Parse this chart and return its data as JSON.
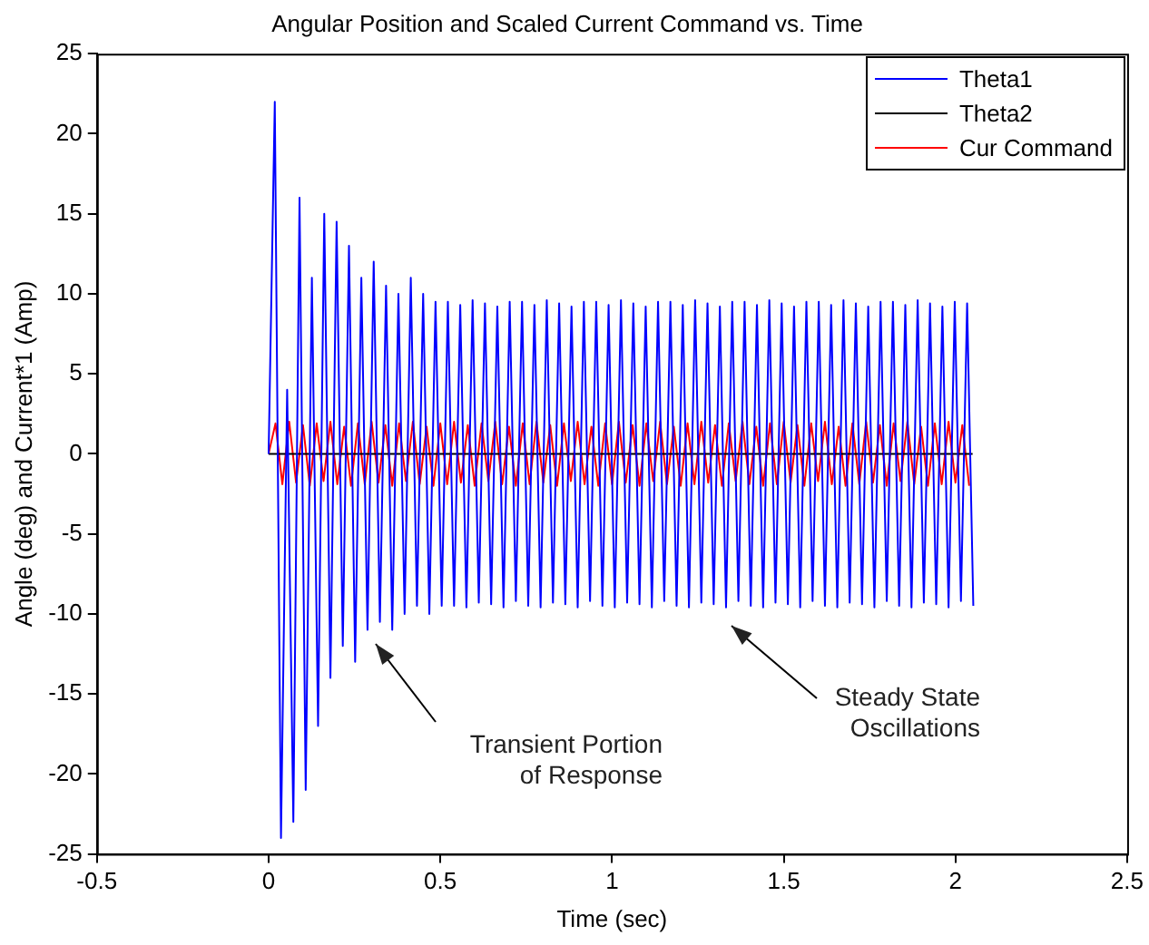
{
  "chart_data": {
    "type": "line",
    "title": "Angular Position and Scaled Current Command vs. Time",
    "xlabel": "Time (sec)",
    "ylabel": "Angle (deg) and Current*1 (Amp)",
    "xlim": [
      -0.5,
      2.5
    ],
    "xticks": [
      -0.5,
      0,
      0.5,
      1,
      1.5,
      2,
      2.5
    ],
    "ylim": [
      -25,
      25
    ],
    "yticks": [
      -25,
      -20,
      -15,
      -10,
      -5,
      0,
      5,
      10,
      15,
      20,
      25
    ],
    "grid": false,
    "legend": "top right",
    "marker": "none",
    "line_style": "solid",
    "annotations": [
      "Transient Portion\nof Response",
      "Steady State\nOscillations"
    ],
    "series": [
      {
        "name": "Theta1",
        "color": "#0000ff",
        "x": [
          0,
          0.018,
          0.036,
          0.054,
          0.072,
          0.09,
          0.108,
          0.126,
          0.144,
          0.162,
          0.18,
          0.198,
          0.216,
          0.234,
          0.252,
          0.27,
          0.288,
          0.306,
          0.324,
          0.342,
          0.36,
          0.378,
          0.396,
          0.414,
          0.432,
          0.45,
          0.468,
          0.486,
          0.504,
          0.522,
          0.54,
          0.558,
          0.576,
          0.594,
          0.612,
          0.63,
          0.648,
          0.666,
          0.684,
          0.702,
          0.72,
          0.738,
          0.756,
          0.774,
          0.792,
          0.81,
          0.828,
          0.846,
          0.864,
          0.882,
          0.9,
          0.918,
          0.936,
          0.954,
          0.972,
          0.99,
          1.008,
          1.026,
          1.044,
          1.062,
          1.08,
          1.098,
          1.116,
          1.134,
          1.152,
          1.17,
          1.188,
          1.206,
          1.224,
          1.242,
          1.26,
          1.278,
          1.296,
          1.314,
          1.332,
          1.35,
          1.368,
          1.386,
          1.404,
          1.422,
          1.44,
          1.458,
          1.476,
          1.494,
          1.512,
          1.53,
          1.548,
          1.566,
          1.584,
          1.602,
          1.62,
          1.638,
          1.656,
          1.674,
          1.692,
          1.71,
          1.728,
          1.746,
          1.764,
          1.782,
          1.8,
          1.818,
          1.836,
          1.854,
          1.872,
          1.89,
          1.908,
          1.926,
          1.944,
          1.962,
          1.98,
          1.998,
          2.016,
          2.034,
          2.052
        ],
        "values": [
          0,
          22,
          -24,
          4,
          -23,
          16,
          -21,
          11,
          -17,
          15,
          -14,
          14.5,
          -12,
          13,
          -13,
          11,
          -11,
          12,
          -10.5,
          10.5,
          -11,
          10,
          -10,
          11,
          -9.5,
          10,
          -10,
          9.5,
          -9.5,
          9.5,
          -9.5,
          9.3,
          -9.6,
          9.6,
          -9.3,
          9.4,
          -9.4,
          9.2,
          -9.6,
          9.5,
          -9.2,
          9.5,
          -9.5,
          9.3,
          -9.6,
          9.6,
          -9.3,
          9.4,
          -9.4,
          9.2,
          -9.6,
          9.5,
          -9.2,
          9.5,
          -9.5,
          9.3,
          -9.6,
          9.6,
          -9.3,
          9.4,
          -9.4,
          9.2,
          -9.6,
          9.5,
          -9.2,
          9.5,
          -9.5,
          9.3,
          -9.6,
          9.6,
          -9.3,
          9.4,
          -9.4,
          9.2,
          -9.6,
          9.5,
          -9.2,
          9.5,
          -9.5,
          9.3,
          -9.6,
          9.6,
          -9.3,
          9.4,
          -9.4,
          9.2,
          -9.6,
          9.5,
          -9.2,
          9.5,
          -9.5,
          9.3,
          -9.6,
          9.6,
          -9.3,
          9.4,
          -9.4,
          9.2,
          -9.6,
          9.5,
          -9.2,
          9.5,
          -9.5,
          9.3,
          -9.6,
          9.6,
          -9.3,
          9.4,
          -9.4,
          9.2,
          -9.6,
          9.5,
          -9.2,
          9.4,
          -9.5
        ]
      },
      {
        "name": "Theta2",
        "color": "#000000",
        "x": [
          0,
          2.05
        ],
        "values": [
          0,
          0
        ]
      },
      {
        "name": "Cur Command",
        "color": "#ff0000",
        "x": [
          0,
          0.02,
          0.04,
          0.06,
          0.08,
          0.1,
          0.12,
          0.14,
          0.16,
          0.18,
          0.2,
          0.22,
          0.24,
          0.26,
          0.28,
          0.3,
          0.32,
          0.34,
          0.36,
          0.38,
          0.4,
          0.42,
          0.44,
          0.46,
          0.48,
          0.5,
          0.52,
          0.54,
          0.56,
          0.58,
          0.6,
          0.62,
          0.64,
          0.66,
          0.68,
          0.7,
          0.72,
          0.74,
          0.76,
          0.78,
          0.8,
          0.82,
          0.84,
          0.86,
          0.88,
          0.9,
          0.92,
          0.94,
          0.96,
          0.98,
          1,
          1.02,
          1.04,
          1.06,
          1.08,
          1.1,
          1.12,
          1.14,
          1.16,
          1.18,
          1.2,
          1.22,
          1.24,
          1.26,
          1.28,
          1.3,
          1.32,
          1.34,
          1.36,
          1.38,
          1.4,
          1.42,
          1.44,
          1.46,
          1.48,
          1.5,
          1.52,
          1.54,
          1.56,
          1.58,
          1.6,
          1.62,
          1.64,
          1.66,
          1.68,
          1.7,
          1.72,
          1.74,
          1.76,
          1.78,
          1.8,
          1.82,
          1.84,
          1.86,
          1.88,
          1.9,
          1.92,
          1.94,
          1.96,
          1.98,
          2,
          2.02,
          2.04
        ],
        "values": [
          0,
          1.9,
          -1.9,
          2,
          -1.8,
          1.8,
          -2,
          1.9,
          -1.7,
          2,
          -1.9,
          1.7,
          -2,
          1.9,
          -1.9,
          2,
          -1.8,
          1.8,
          -2,
          1.9,
          -1.7,
          2,
          -1.9,
          1.7,
          -2,
          1.9,
          -1.9,
          2,
          -1.8,
          1.8,
          -2,
          1.9,
          -1.7,
          2,
          -1.9,
          1.7,
          -2,
          1.9,
          -1.9,
          2,
          -1.8,
          1.8,
          -2,
          1.9,
          -1.7,
          2,
          -1.9,
          1.7,
          -2,
          1.9,
          -1.9,
          2,
          -1.8,
          1.8,
          -2,
          1.9,
          -1.7,
          2,
          -1.9,
          1.7,
          -2,
          1.9,
          -1.9,
          2,
          -1.8,
          1.8,
          -2,
          1.9,
          -1.7,
          2,
          -1.9,
          1.7,
          -2,
          1.9,
          -1.9,
          2,
          -1.8,
          1.8,
          -2,
          1.9,
          -1.7,
          2,
          -1.9,
          1.7,
          -2,
          1.9,
          -1.9,
          2,
          -1.8,
          1.8,
          -2,
          1.9,
          -1.7,
          2,
          -1.9,
          1.7,
          -2,
          1.9,
          -1.9,
          2,
          -1.8,
          1.8,
          -2
        ]
      }
    ]
  }
}
